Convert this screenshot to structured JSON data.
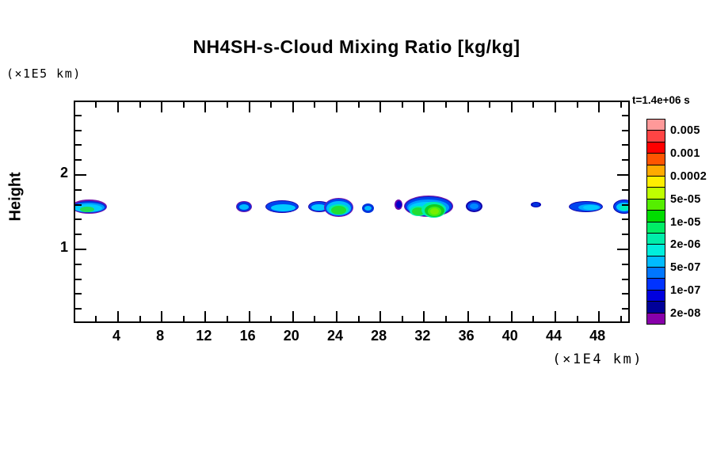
{
  "chart_data": {
    "type": "heatmap",
    "title": "NH4SH-s-Cloud Mixing Ratio [kg/kg]",
    "ylabel": "Height",
    "ylabel_unit": "(×1E5 km)",
    "xlabel": "(×1E4 km)",
    "time_annotation": "t=1.4e+06 s",
    "x_range": [
      0,
      51
    ],
    "y_range": [
      0,
      3
    ],
    "x_axis": {
      "minor_step": 2,
      "major_step": 4,
      "tick_labels": [
        "4",
        "8",
        "12",
        "16",
        "20",
        "24",
        "28",
        "32",
        "36",
        "40",
        "44",
        "48"
      ]
    },
    "y_axis": {
      "minor_step": 0.2,
      "major_step": 1,
      "tick_labels": [
        "1",
        "2"
      ]
    },
    "grid": false,
    "legend_position": "right",
    "colorbar": {
      "labels": [
        "0.005",
        "0.001",
        "0.0002",
        "5e-05",
        "1e-05",
        "2e-06",
        "5e-07",
        "1e-07",
        "2e-08"
      ],
      "cell_colors_top_to_bottom": [
        "#ff9999",
        "#ff4444",
        "#ff0000",
        "#ff5500",
        "#ffaa00",
        "#ffee00",
        "#bfff00",
        "#55ee00",
        "#00dd00",
        "#00ee66",
        "#00eeaa",
        "#00eedd",
        "#00bbff",
        "#0077ff",
        "#0033ff",
        "#0000dd",
        "#000099",
        "#8800aa"
      ]
    },
    "clouds": [
      {
        "x_center": 1.2,
        "y_center": 1.55,
        "peak_level": "1e-05",
        "layers": [
          [
            -5,
            123,
            45,
            18,
            "#7711aa"
          ],
          [
            -4,
            125,
            43,
            15,
            "#0033dd"
          ],
          [
            -3,
            127,
            40,
            12,
            "#0099ff"
          ],
          [
            -2,
            129,
            36,
            10,
            "#00ccff"
          ],
          [
            6,
            132,
            18,
            7,
            "#22dd55"
          ]
        ]
      },
      {
        "x_center": 15.5,
        "y_center": 1.55,
        "peak_level": "5e-07",
        "layers": [
          [
            203,
            125,
            20,
            14,
            "#7711aa"
          ],
          [
            204,
            126,
            18,
            12,
            "#0033dd"
          ],
          [
            207,
            129,
            12,
            7,
            "#00bbff"
          ]
        ]
      },
      {
        "x_center": 19.0,
        "y_center": 1.55,
        "peak_level": "5e-07",
        "layers": [
          [
            240,
            124,
            42,
            16,
            "#2200aa"
          ],
          [
            241,
            125,
            40,
            14,
            "#0044ee"
          ],
          [
            247,
            129,
            31,
            9,
            "#00ccff"
          ]
        ]
      },
      {
        "x_center": 23.5,
        "y_center": 1.55,
        "peak_level": "1e-05",
        "layers": [
          [
            294,
            125,
            28,
            14,
            "#2200aa"
          ],
          [
            295,
            126,
            26,
            12,
            "#0044ee"
          ],
          [
            298,
            129,
            19,
            8,
            "#00ccff"
          ],
          [
            314,
            121,
            37,
            24,
            "#7711aa"
          ],
          [
            315,
            122,
            35,
            22,
            "#0044ee"
          ],
          [
            317,
            125,
            31,
            18,
            "#00bbff"
          ],
          [
            320,
            129,
            25,
            13,
            "#00eeaa"
          ],
          [
            323,
            131,
            19,
            11,
            "#22dd33"
          ]
        ]
      },
      {
        "x_center": 26.8,
        "y_center": 1.5,
        "peak_level": "5e-07",
        "layers": [
          [
            362,
            128,
            15,
            12,
            "#0033dd"
          ],
          [
            365,
            131,
            9,
            6,
            "#00bbff"
          ]
        ]
      },
      {
        "x_center": 29.3,
        "y_center": 1.6,
        "peak_level": "1e-07",
        "layers": [
          [
            403,
            123,
            10,
            13,
            "#6600aa"
          ],
          [
            405,
            125,
            7,
            9,
            "#0000cc"
          ]
        ]
      },
      {
        "x_center": 32.5,
        "y_center": 1.55,
        "peak_level": "5e-05",
        "layers": [
          [
            415,
            118,
            62,
            27,
            "#7711aa"
          ],
          [
            416,
            119,
            60,
            25,
            "#1122cc"
          ],
          [
            417,
            120,
            58,
            23,
            "#0044ee"
          ],
          [
            419,
            123,
            53,
            20,
            "#0099ff"
          ],
          [
            421,
            126,
            47,
            16,
            "#00ccff"
          ],
          [
            422,
            131,
            22,
            13,
            "#00eeaa"
          ],
          [
            425,
            133,
            16,
            10,
            "#22dd33"
          ],
          [
            437,
            126,
            31,
            20,
            "#00eeaa"
          ],
          [
            441,
            129,
            25,
            16,
            "#11cc22"
          ],
          [
            445,
            132,
            17,
            12,
            "#44ee11"
          ],
          [
            448,
            134,
            11,
            8,
            "#77ee00"
          ]
        ]
      },
      {
        "x_center": 36.5,
        "y_center": 1.55,
        "peak_level": "1e-07",
        "layers": [
          [
            493,
            124,
            21,
            15,
            "#1100aa"
          ],
          [
            495,
            126,
            17,
            11,
            "#0044ee"
          ],
          [
            498,
            128,
            11,
            7,
            "#0088ff"
          ]
        ]
      },
      {
        "x_center": 42.2,
        "y_center": 1.6,
        "peak_level": "1e-07",
        "layers": [
          [
            575,
            126,
            13,
            7,
            "#0000bb"
          ],
          [
            577,
            127,
            9,
            5,
            "#0033dd"
          ]
        ]
      },
      {
        "x_center": 46.7,
        "y_center": 1.55,
        "peak_level": "5e-07",
        "layers": [
          [
            623,
            125,
            43,
            14,
            "#1100aa"
          ],
          [
            624,
            126,
            41,
            12,
            "#0044ee"
          ],
          [
            635,
            129,
            28,
            8,
            "#00aaff"
          ],
          [
            641,
            130,
            20,
            6,
            "#00ccff"
          ]
        ]
      },
      {
        "x_center": 50.0,
        "y_center": 1.55,
        "peak_level": "5e-07",
        "layers": [
          [
            679,
            123,
            28,
            18,
            "#1100aa"
          ],
          [
            680,
            124,
            26,
            16,
            "#0044ee"
          ],
          [
            683,
            127,
            20,
            11,
            "#00ccff"
          ],
          [
            687,
            130,
            13,
            7,
            "#00eebb"
          ]
        ]
      }
    ]
  }
}
